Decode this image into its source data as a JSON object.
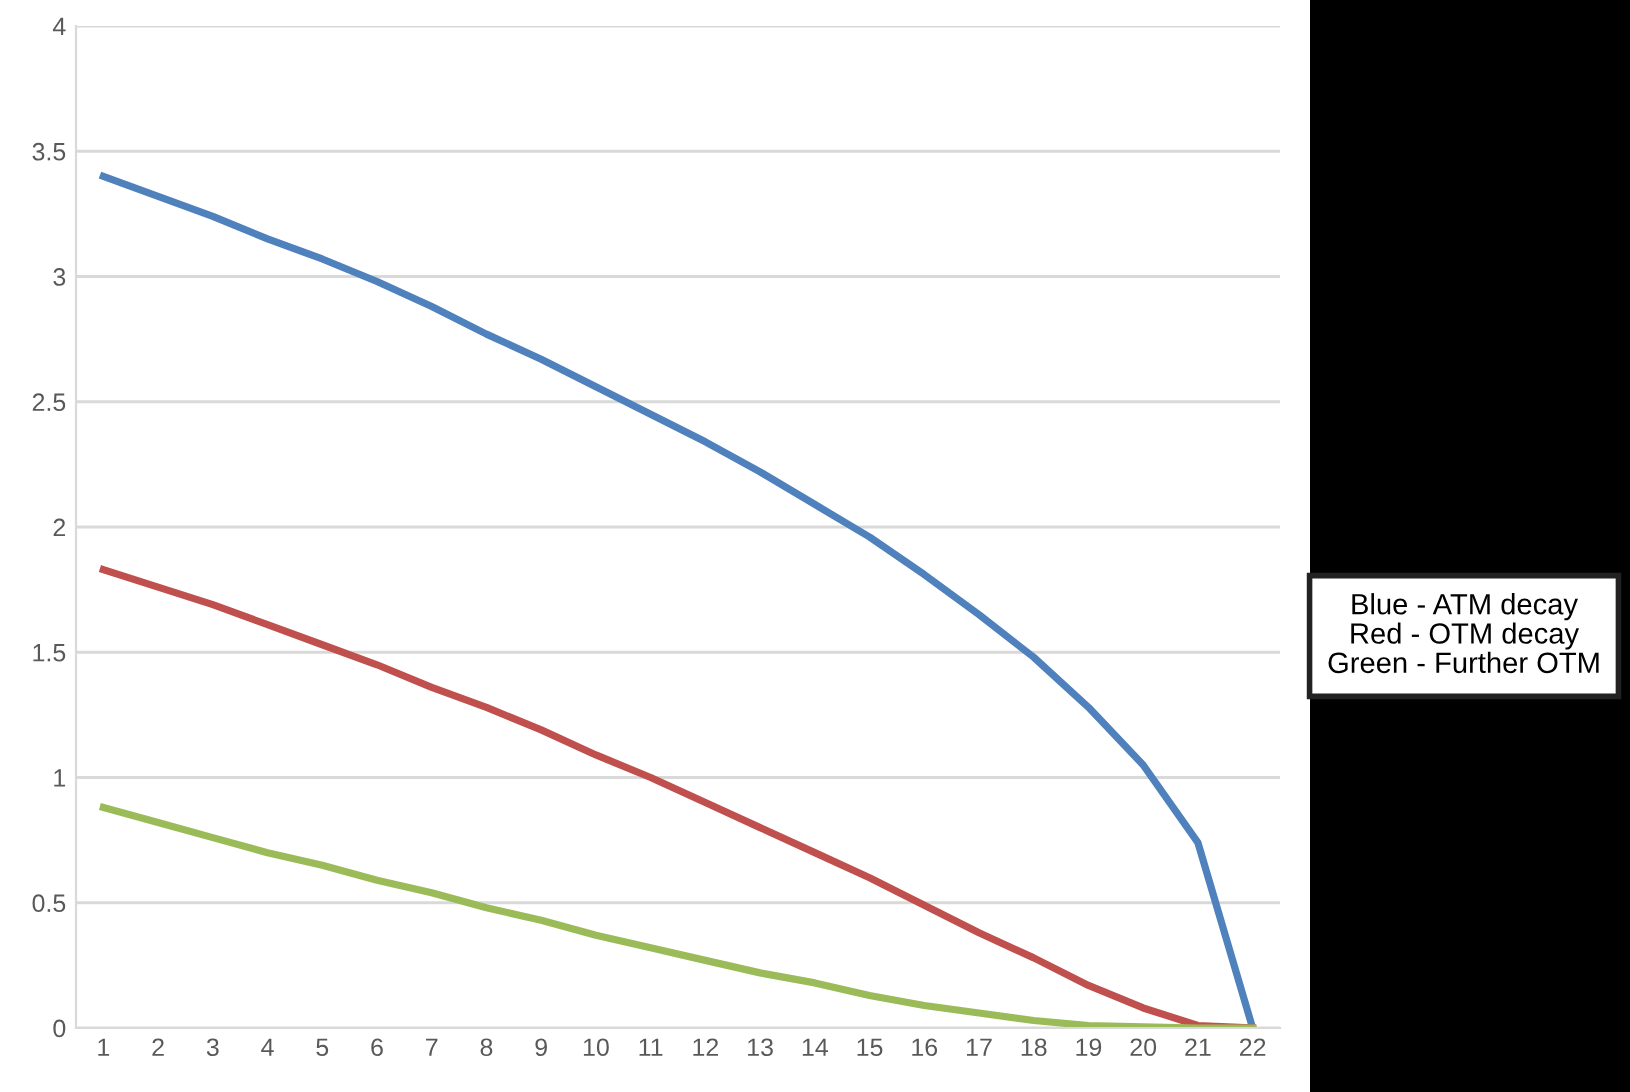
{
  "chart_data": {
    "type": "line",
    "categories": [
      "1",
      "2",
      "3",
      "4",
      "5",
      "6",
      "7",
      "8",
      "9",
      "10",
      "11",
      "12",
      "13",
      "14",
      "15",
      "16",
      "17",
      "18",
      "19",
      "20",
      "21",
      "22"
    ],
    "series": [
      {
        "color": "#4f81bd",
        "values": [
          3.4,
          3.32,
          3.24,
          3.15,
          3.07,
          2.98,
          2.88,
          2.77,
          2.67,
          2.56,
          2.45,
          2.34,
          2.22,
          2.09,
          1.96,
          1.81,
          1.65,
          1.48,
          1.28,
          1.05,
          0.74,
          0
        ]
      },
      {
        "color": "#c0504d",
        "values": [
          1.83,
          1.76,
          1.69,
          1.61,
          1.53,
          1.45,
          1.36,
          1.28,
          1.19,
          1.09,
          1.0,
          0.9,
          0.8,
          0.7,
          0.6,
          0.49,
          0.38,
          0.28,
          0.17,
          0.08,
          0.01,
          0
        ]
      },
      {
        "color": "#9bbb59",
        "values": [
          0.88,
          0.82,
          0.76,
          0.7,
          0.65,
          0.59,
          0.54,
          0.48,
          0.43,
          0.37,
          0.32,
          0.27,
          0.22,
          0.18,
          0.13,
          0.09,
          0.06,
          0.03,
          0.01,
          0.005,
          0,
          0
        ]
      }
    ],
    "ylim": [
      0,
      4
    ],
    "yticks": [
      0,
      0.5,
      1,
      1.5,
      2,
      2.5,
      3,
      3.5,
      4
    ],
    "grid": "y",
    "marker": "none",
    "line_style": "solid",
    "annotations": [
      "Blue - ATM decay\nRed - OTM decay\nGreen - Further OTM"
    ]
  }
}
